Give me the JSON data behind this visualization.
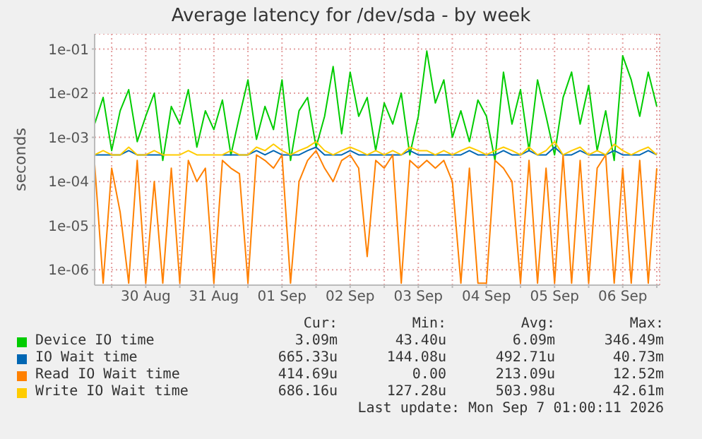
{
  "chart_data": {
    "type": "line",
    "title": "Average latency for /dev/sda - by week",
    "ylabel": "seconds",
    "log": "y",
    "grid": true,
    "legend": "bottom",
    "marker": "none",
    "line_style": "solid",
    "xlim": [
      "2026-08-29T18:00",
      "2026-09-07T01:00"
    ],
    "xticks": [
      {
        "value": "2026-08-30T00:00",
        "label": null
      },
      {
        "value": "2026-08-30T12:00",
        "label": "30 Aug"
      },
      {
        "value": "2026-08-31T00:00",
        "label": null
      },
      {
        "value": "2026-08-31T12:00",
        "label": "31 Aug"
      },
      {
        "value": "2026-09-01T00:00",
        "label": null
      },
      {
        "value": "2026-09-01T12:00",
        "label": "01 Sep"
      },
      {
        "value": "2026-09-02T00:00",
        "label": null
      },
      {
        "value": "2026-09-02T12:00",
        "label": "02 Sep"
      },
      {
        "value": "2026-09-03T00:00",
        "label": null
      },
      {
        "value": "2026-09-03T12:00",
        "label": "03 Sep"
      },
      {
        "value": "2026-09-04T00:00",
        "label": null
      },
      {
        "value": "2026-09-04T12:00",
        "label": "04 Sep"
      },
      {
        "value": "2026-09-05T00:00",
        "label": null
      },
      {
        "value": "2026-09-05T12:00",
        "label": "05 Sep"
      },
      {
        "value": "2026-09-06T00:00",
        "label": null
      },
      {
        "value": "2026-09-06T12:00",
        "label": "06 Sep"
      },
      {
        "value": "2026-09-07T00:00",
        "label": null
      }
    ],
    "ylim": [
      4.5e-07,
      0.22
    ],
    "yticks": [
      {
        "value": 1e-06,
        "label": "1e-06"
      },
      {
        "value": 1e-05,
        "label": "1e-05"
      },
      {
        "value": 0.0001,
        "label": "1e-04"
      },
      {
        "value": 0.001,
        "label": "1e-03"
      },
      {
        "value": 0.01,
        "label": "1e-02"
      },
      {
        "value": 0.1,
        "label": "1e-01"
      }
    ],
    "x": [
      "2026-08-29T18:00",
      "2026-08-29T21:00",
      "2026-08-30T00:00",
      "2026-08-30T03:00",
      "2026-08-30T06:00",
      "2026-08-30T09:00",
      "2026-08-30T12:00",
      "2026-08-30T15:00",
      "2026-08-30T18:00",
      "2026-08-30T21:00",
      "2026-08-31T00:00",
      "2026-08-31T03:00",
      "2026-08-31T06:00",
      "2026-08-31T09:00",
      "2026-08-31T12:00",
      "2026-08-31T15:00",
      "2026-08-31T18:00",
      "2026-08-31T21:00",
      "2026-09-01T00:00",
      "2026-09-01T03:00",
      "2026-09-01T06:00",
      "2026-09-01T09:00",
      "2026-09-01T12:00",
      "2026-09-01T15:00",
      "2026-09-01T18:00",
      "2026-09-01T21:00",
      "2026-09-02T00:00",
      "2026-09-02T03:00",
      "2026-09-02T06:00",
      "2026-09-02T09:00",
      "2026-09-02T12:00",
      "2026-09-02T15:00",
      "2026-09-02T18:00",
      "2026-09-02T21:00",
      "2026-09-03T00:00",
      "2026-09-03T03:00",
      "2026-09-03T06:00",
      "2026-09-03T09:00",
      "2026-09-03T12:00",
      "2026-09-03T15:00",
      "2026-09-03T18:00",
      "2026-09-03T21:00",
      "2026-09-04T00:00",
      "2026-09-04T03:00",
      "2026-09-04T06:00",
      "2026-09-04T09:00",
      "2026-09-04T12:00",
      "2026-09-04T15:00",
      "2026-09-04T18:00",
      "2026-09-04T21:00",
      "2026-09-05T00:00",
      "2026-09-05T03:00",
      "2026-09-05T06:00",
      "2026-09-05T09:00",
      "2026-09-05T12:00",
      "2026-09-05T15:00",
      "2026-09-05T18:00",
      "2026-09-05T21:00",
      "2026-09-06T00:00",
      "2026-09-06T03:00",
      "2026-09-06T06:00",
      "2026-09-06T09:00",
      "2026-09-06T12:00",
      "2026-09-06T15:00",
      "2026-09-06T18:00",
      "2026-09-06T21:00",
      "2026-09-07T00:00"
    ],
    "series": [
      {
        "name": "Device IO time",
        "color": "#00cc00",
        "values": [
          0.002,
          0.008,
          0.0005,
          0.004,
          0.012,
          0.0008,
          0.003,
          0.01,
          0.0003,
          0.005,
          0.002,
          0.012,
          0.0006,
          0.004,
          0.0015,
          0.007,
          0.0004,
          0.003,
          0.02,
          0.0009,
          0.005,
          0.0015,
          0.02,
          0.0003,
          0.004,
          0.008,
          0.0006,
          0.003,
          0.04,
          0.0012,
          0.03,
          0.003,
          0.008,
          0.0005,
          0.006,
          0.002,
          0.01,
          0.0004,
          0.003,
          0.09,
          0.006,
          0.02,
          0.001,
          0.004,
          0.0008,
          0.007,
          0.003,
          0.0003,
          0.03,
          0.002,
          0.012,
          0.0005,
          0.02,
          0.003,
          0.0004,
          0.008,
          0.03,
          0.002,
          0.015,
          0.0005,
          0.004,
          0.0003,
          0.07,
          0.02,
          0.003,
          0.03,
          0.005
        ]
      },
      {
        "name": "IO Wait time",
        "color": "#0066b3",
        "values": [
          0.0004,
          0.0004,
          0.0004,
          0.0004,
          0.0005,
          0.0004,
          0.0004,
          0.0004,
          0.0004,
          null,
          null,
          null,
          null,
          null,
          null,
          0.0004,
          0.0004,
          0.0004,
          0.0004,
          0.0005,
          0.0004,
          0.0005,
          0.0004,
          0.0004,
          0.0004,
          0.0005,
          0.0006,
          0.0004,
          0.0004,
          0.0004,
          0.0005,
          0.0004,
          0.0004,
          0.0004,
          0.0004,
          0.0004,
          0.0004,
          0.0005,
          0.0004,
          0.0004,
          0.0004,
          0.0004,
          0.0004,
          0.0004,
          0.0005,
          0.0004,
          0.0004,
          0.0004,
          0.0005,
          0.0004,
          0.0004,
          0.0005,
          0.0004,
          0.0004,
          0.0006,
          0.0004,
          0.0004,
          0.0005,
          0.0004,
          0.0004,
          0.0004,
          0.0005,
          0.0004,
          0.0004,
          0.0004,
          0.0005,
          0.0004
        ]
      },
      {
        "name": "Read IO Wait time",
        "color": "#ff8000",
        "values": [
          0.00025,
          5e-07,
          0.0002,
          2e-05,
          5e-07,
          0.0003,
          5e-07,
          0.0001,
          5e-07,
          0.0002,
          5e-07,
          0.0003,
          0.0001,
          0.0002,
          5e-07,
          0.0003,
          0.0002,
          0.00015,
          5e-07,
          0.0004,
          0.0003,
          0.0002,
          0.0004,
          5e-07,
          0.0001,
          0.0003,
          0.0005,
          0.0002,
          0.0001,
          0.0003,
          0.0004,
          0.0002,
          2e-06,
          0.0003,
          0.0002,
          0.0004,
          5e-07,
          0.0003,
          0.0002,
          0.0003,
          0.0002,
          0.0003,
          0.0001,
          5e-07,
          0.0002,
          5e-07,
          5e-07,
          0.0003,
          0.0002,
          0.0001,
          5e-07,
          0.0003,
          5e-07,
          0.0002,
          5e-07,
          0.0004,
          5e-07,
          0.0003,
          5e-07,
          0.0002,
          0.0004,
          5e-07,
          0.0002,
          5e-07,
          0.0003,
          5e-07,
          0.0002
        ]
      },
      {
        "name": "Write IO Wait time",
        "color": "#ffcc00",
        "values": [
          0.0004,
          0.0005,
          0.0004,
          0.0004,
          0.0006,
          0.0004,
          0.0004,
          0.0005,
          0.0004,
          0.0004,
          0.0004,
          0.0005,
          0.0004,
          0.0004,
          0.0004,
          0.0004,
          0.0005,
          0.0004,
          0.0004,
          0.0006,
          0.0005,
          0.0007,
          0.0005,
          0.0004,
          0.0005,
          0.0006,
          0.0008,
          0.0005,
          0.0004,
          0.0005,
          0.0006,
          0.0005,
          0.0004,
          0.0005,
          0.0004,
          0.0005,
          0.0004,
          0.0006,
          0.0005,
          0.0005,
          0.0004,
          0.0005,
          0.0004,
          0.0005,
          0.0006,
          0.0005,
          0.0004,
          0.0005,
          0.0006,
          0.0005,
          0.0004,
          0.0006,
          0.0004,
          0.0005,
          0.0008,
          0.0004,
          0.0005,
          0.0006,
          0.0004,
          0.0005,
          0.0004,
          0.0007,
          0.0005,
          0.0004,
          0.0005,
          0.0006,
          0.0004
        ]
      }
    ],
    "annotations": [
      "Cur:",
      "Min:",
      "Avg:",
      "Max:",
      "3.09m",
      "43.40u",
      "6.09m",
      "346.49m",
      "665.33u",
      "144.08u",
      "492.71u",
      "40.73m",
      "414.69u",
      "0.00",
      "213.09u",
      "12.52m",
      "686.16u",
      "127.28u",
      "503.98u",
      "42.61m",
      "Last update: Mon Sep  7 01:00:11 2026"
    ]
  }
}
